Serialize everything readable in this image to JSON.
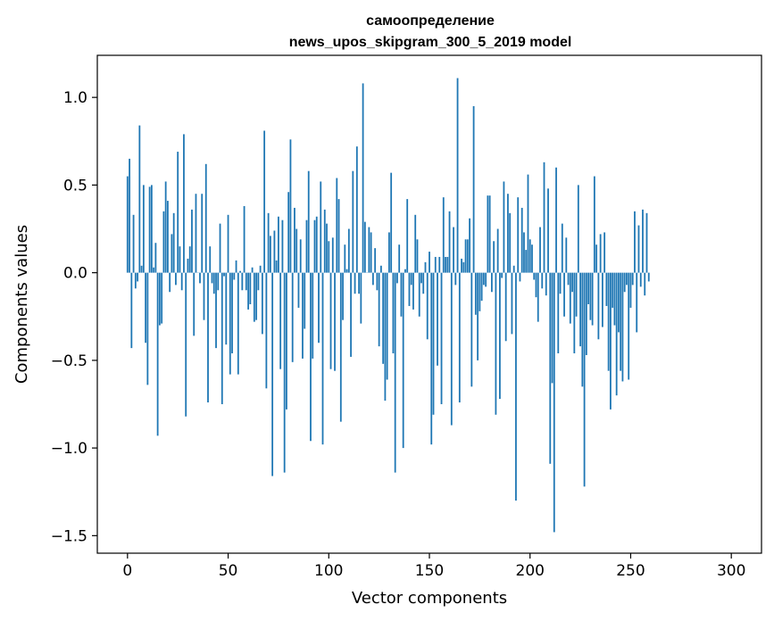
{
  "chart_data": {
    "type": "bar",
    "title": "самоопределение",
    "subtitle": "news_upos_skipgram_300_5_2019 model",
    "xlabel": "Vector components",
    "ylabel": "Components values",
    "xlim": [
      -15,
      315
    ],
    "ylim": [
      -1.6,
      1.24
    ],
    "xticks": [
      0,
      50,
      100,
      150,
      200,
      250,
      300
    ],
    "xtick_labels": [
      "0",
      "50",
      "100",
      "150",
      "200",
      "250",
      "300"
    ],
    "yticks": [
      -1.5,
      -1.0,
      -0.5,
      0.0,
      0.5,
      1.0
    ],
    "ytick_labels": [
      "−1.5",
      "−1.0",
      "−0.5",
      "0.0",
      "0.5",
      "1.0"
    ],
    "grid": false,
    "bar_color": "#1f77b4",
    "values": [
      0.55,
      0.65,
      -0.43,
      0.33,
      -0.09,
      -0.05,
      0.84,
      0.04,
      0.5,
      -0.4,
      -0.64,
      0.49,
      0.5,
      0.03,
      0.17,
      -0.93,
      -0.3,
      -0.29,
      0.35,
      0.52,
      0.41,
      -0.11,
      0.22,
      0.34,
      -0.07,
      0.69,
      0.15,
      -0.1,
      0.79,
      -0.82,
      0.08,
      0.15,
      0.36,
      -0.36,
      0.45,
      0.0,
      -0.06,
      0.45,
      -0.27,
      0.62,
      -0.74,
      0.15,
      -0.06,
      -0.12,
      -0.43,
      -0.1,
      0.28,
      -0.75,
      -0.02,
      -0.41,
      0.33,
      -0.58,
      -0.46,
      -0.04,
      0.07,
      -0.58,
      0.01,
      -0.1,
      0.38,
      -0.1,
      -0.21,
      -0.18,
      0.03,
      -0.28,
      -0.27,
      -0.1,
      0.04,
      -0.35,
      0.81,
      -0.66,
      0.34,
      0.21,
      -1.16,
      0.24,
      0.07,
      0.32,
      -0.55,
      0.3,
      -1.14,
      -0.78,
      0.46,
      0.76,
      -0.51,
      0.37,
      0.25,
      -0.2,
      0.19,
      -0.49,
      -0.32,
      0.3,
      0.58,
      -0.96,
      -0.49,
      0.3,
      0.32,
      -0.4,
      0.52,
      -0.98,
      0.36,
      0.28,
      0.18,
      -0.55,
      0.2,
      -0.56,
      0.54,
      0.42,
      -0.85,
      -0.27,
      0.16,
      0.02,
      0.25,
      -0.48,
      0.58,
      -0.12,
      0.72,
      -0.12,
      -0.29,
      1.08,
      0.29,
      0.0,
      0.26,
      0.23,
      -0.07,
      0.14,
      -0.1,
      -0.42,
      0.04,
      -0.52,
      -0.73,
      -0.61,
      0.23,
      0.57,
      -0.46,
      -1.14,
      -0.06,
      0.16,
      -0.25,
      -1.0,
      0.02,
      0.42,
      -0.19,
      -0.07,
      -0.21,
      0.33,
      0.19,
      -0.25,
      -0.06,
      -0.12,
      0.06,
      -0.38,
      0.12,
      -0.98,
      -0.81,
      0.09,
      -0.53,
      0.09,
      -0.75,
      0.43,
      0.09,
      0.09,
      0.35,
      -0.87,
      0.26,
      -0.07,
      1.11,
      -0.74,
      0.08,
      0.06,
      0.19,
      0.19,
      0.31,
      -0.65,
      0.95,
      -0.24,
      -0.5,
      -0.22,
      -0.16,
      -0.07,
      -0.08,
      0.44,
      0.44,
      -0.11,
      0.18,
      -0.81,
      0.25,
      -0.72,
      -0.03,
      0.52,
      -0.39,
      0.45,
      0.34,
      -0.35,
      0.04,
      -1.3,
      0.43,
      -0.05,
      0.37,
      0.23,
      0.13,
      0.56,
      0.19,
      0.16,
      -0.04,
      -0.14,
      -0.28,
      0.26,
      -0.09,
      0.63,
      -0.13,
      0.48,
      -1.09,
      -0.63,
      -1.48,
      0.6,
      -0.46,
      -0.12,
      0.28,
      -0.25,
      0.2,
      -0.07,
      -0.29,
      -0.11,
      -0.46,
      -0.25,
      0.5,
      -0.42,
      -0.65,
      -1.22,
      -0.47,
      -0.18,
      -0.27,
      -0.3,
      0.55,
      0.16,
      -0.38,
      0.22,
      -0.31,
      0.23,
      -0.19,
      -0.56,
      -0.78,
      -0.2,
      -0.3,
      -0.7,
      -0.34,
      -0.56,
      -0.62,
      -0.11,
      -0.07,
      -0.61,
      -0.2,
      -0.07,
      0.35,
      -0.34,
      0.27,
      -0.08,
      0.36,
      -0.13,
      0.34,
      -0.05
    ]
  }
}
